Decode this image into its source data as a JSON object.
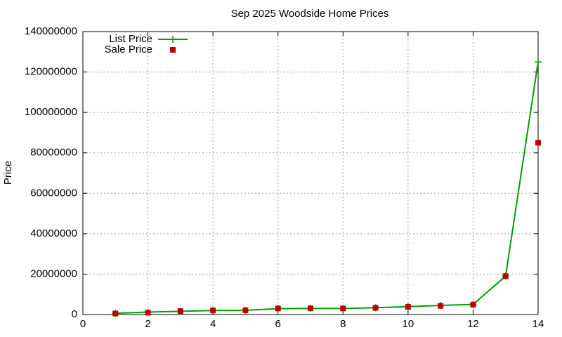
{
  "chart_data": {
    "type": "line",
    "title": "Sep 2025 Woodside Home Prices",
    "y_label": "Price",
    "x": [
      1,
      2,
      3,
      4,
      5,
      6,
      7,
      8,
      9,
      10,
      11,
      12,
      13,
      14
    ],
    "series": [
      {
        "name": "List Price",
        "color": "#00a000",
        "mode": "linespoints",
        "values": [
          600000,
          1200000,
          1600000,
          2000000,
          2100000,
          2900000,
          3000000,
          3000000,
          3400000,
          3900000,
          4500000,
          5000000,
          19000000,
          125000000
        ]
      },
      {
        "name": "Sale Price",
        "color": "#c00000",
        "mode": "points",
        "values": [
          500000,
          900000,
          1700000,
          2000000,
          2100000,
          3000000,
          3100000,
          3000000,
          3300000,
          3800000,
          4300000,
          4900000,
          19000000,
          85000000
        ]
      }
    ],
    "xlim": [
      0,
      14
    ],
    "xticks": [
      0,
      2,
      4,
      6,
      8,
      10,
      12,
      14
    ],
    "ylim": [
      0,
      140000000
    ],
    "yticks": [
      0,
      20000000,
      40000000,
      60000000,
      80000000,
      100000000,
      120000000,
      140000000
    ],
    "grid": true,
    "legend": "top-left"
  }
}
